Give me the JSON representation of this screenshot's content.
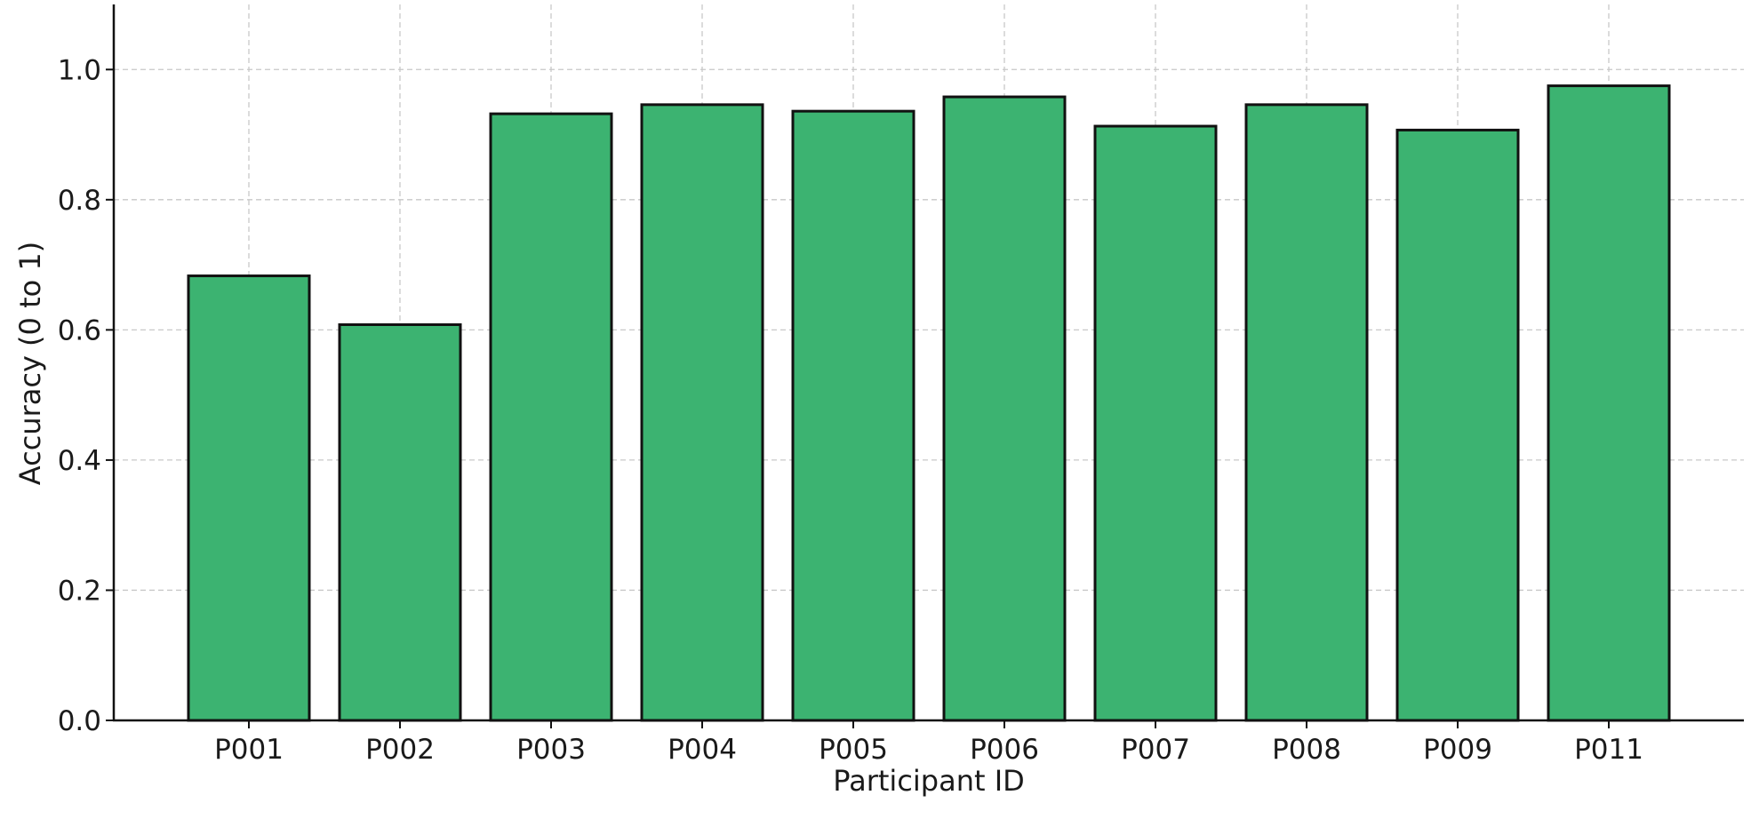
{
  "chart_data": {
    "type": "bar",
    "title": "",
    "xlabel": "Participant ID",
    "ylabel": "Accuracy (0 to 1)",
    "categories": [
      "P001",
      "P002",
      "P003",
      "P004",
      "P005",
      "P006",
      "P007",
      "P008",
      "P009",
      "P011"
    ],
    "values": [
      0.683,
      0.608,
      0.932,
      0.946,
      0.936,
      0.958,
      0.913,
      0.946,
      0.907,
      0.975
    ],
    "ylim": [
      0,
      1.1
    ],
    "yticks": [
      0.0,
      0.2,
      0.4,
      0.6,
      0.8,
      1.0
    ],
    "ytick_labels": [
      "0.0",
      "0.2",
      "0.4",
      "0.6",
      "0.8",
      "1.0"
    ],
    "grid": true,
    "legend": "none",
    "colors": {
      "bar_fill": "#3cb371",
      "bar_edge": "#111111",
      "grid": "#c8c8c8",
      "axis": "#111111"
    }
  }
}
